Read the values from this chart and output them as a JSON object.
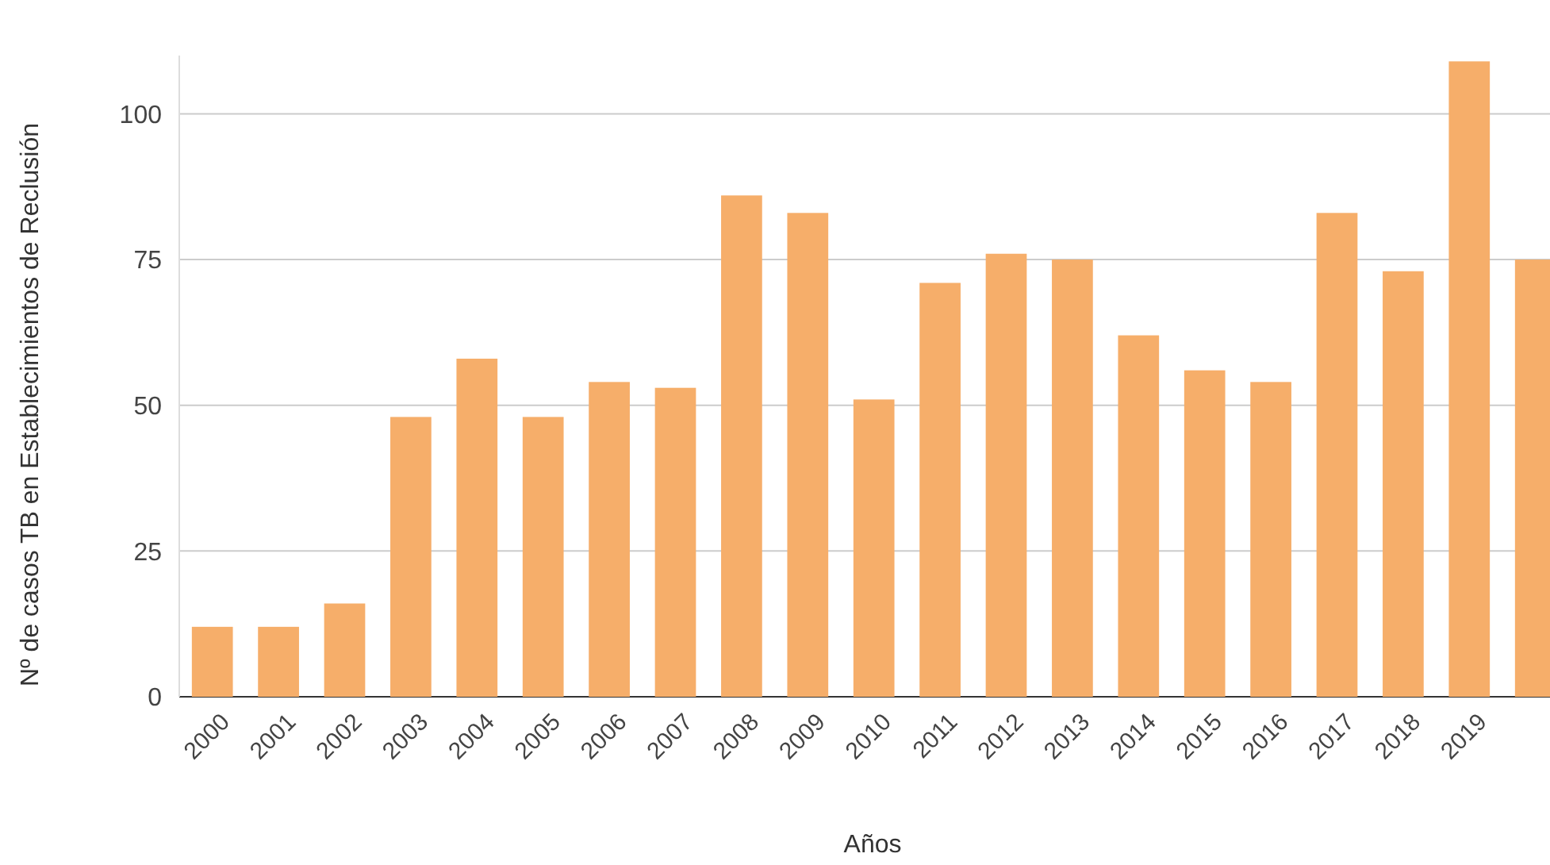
{
  "chart_data": {
    "type": "bar",
    "xlabel": "Años",
    "ylabel": "Nº de casos TB en Establecimientos de Reclusión",
    "categories": [
      "2000",
      "2001",
      "2002",
      "2003",
      "2004",
      "2005",
      "2006",
      "2007",
      "2008",
      "2009",
      "2010",
      "2011",
      "2012",
      "2013",
      "2014",
      "2015",
      "2016",
      "2017",
      "2018",
      "2019",
      null
    ],
    "values": [
      12,
      12,
      16,
      48,
      58,
      48,
      54,
      53,
      86,
      83,
      51,
      71,
      76,
      75,
      62,
      56,
      54,
      83,
      73,
      109,
      75
    ],
    "color": "#f6ae6a",
    "ylim": [
      0,
      110
    ],
    "yticks": [
      0,
      25,
      50,
      75,
      100
    ],
    "grid": "y"
  }
}
